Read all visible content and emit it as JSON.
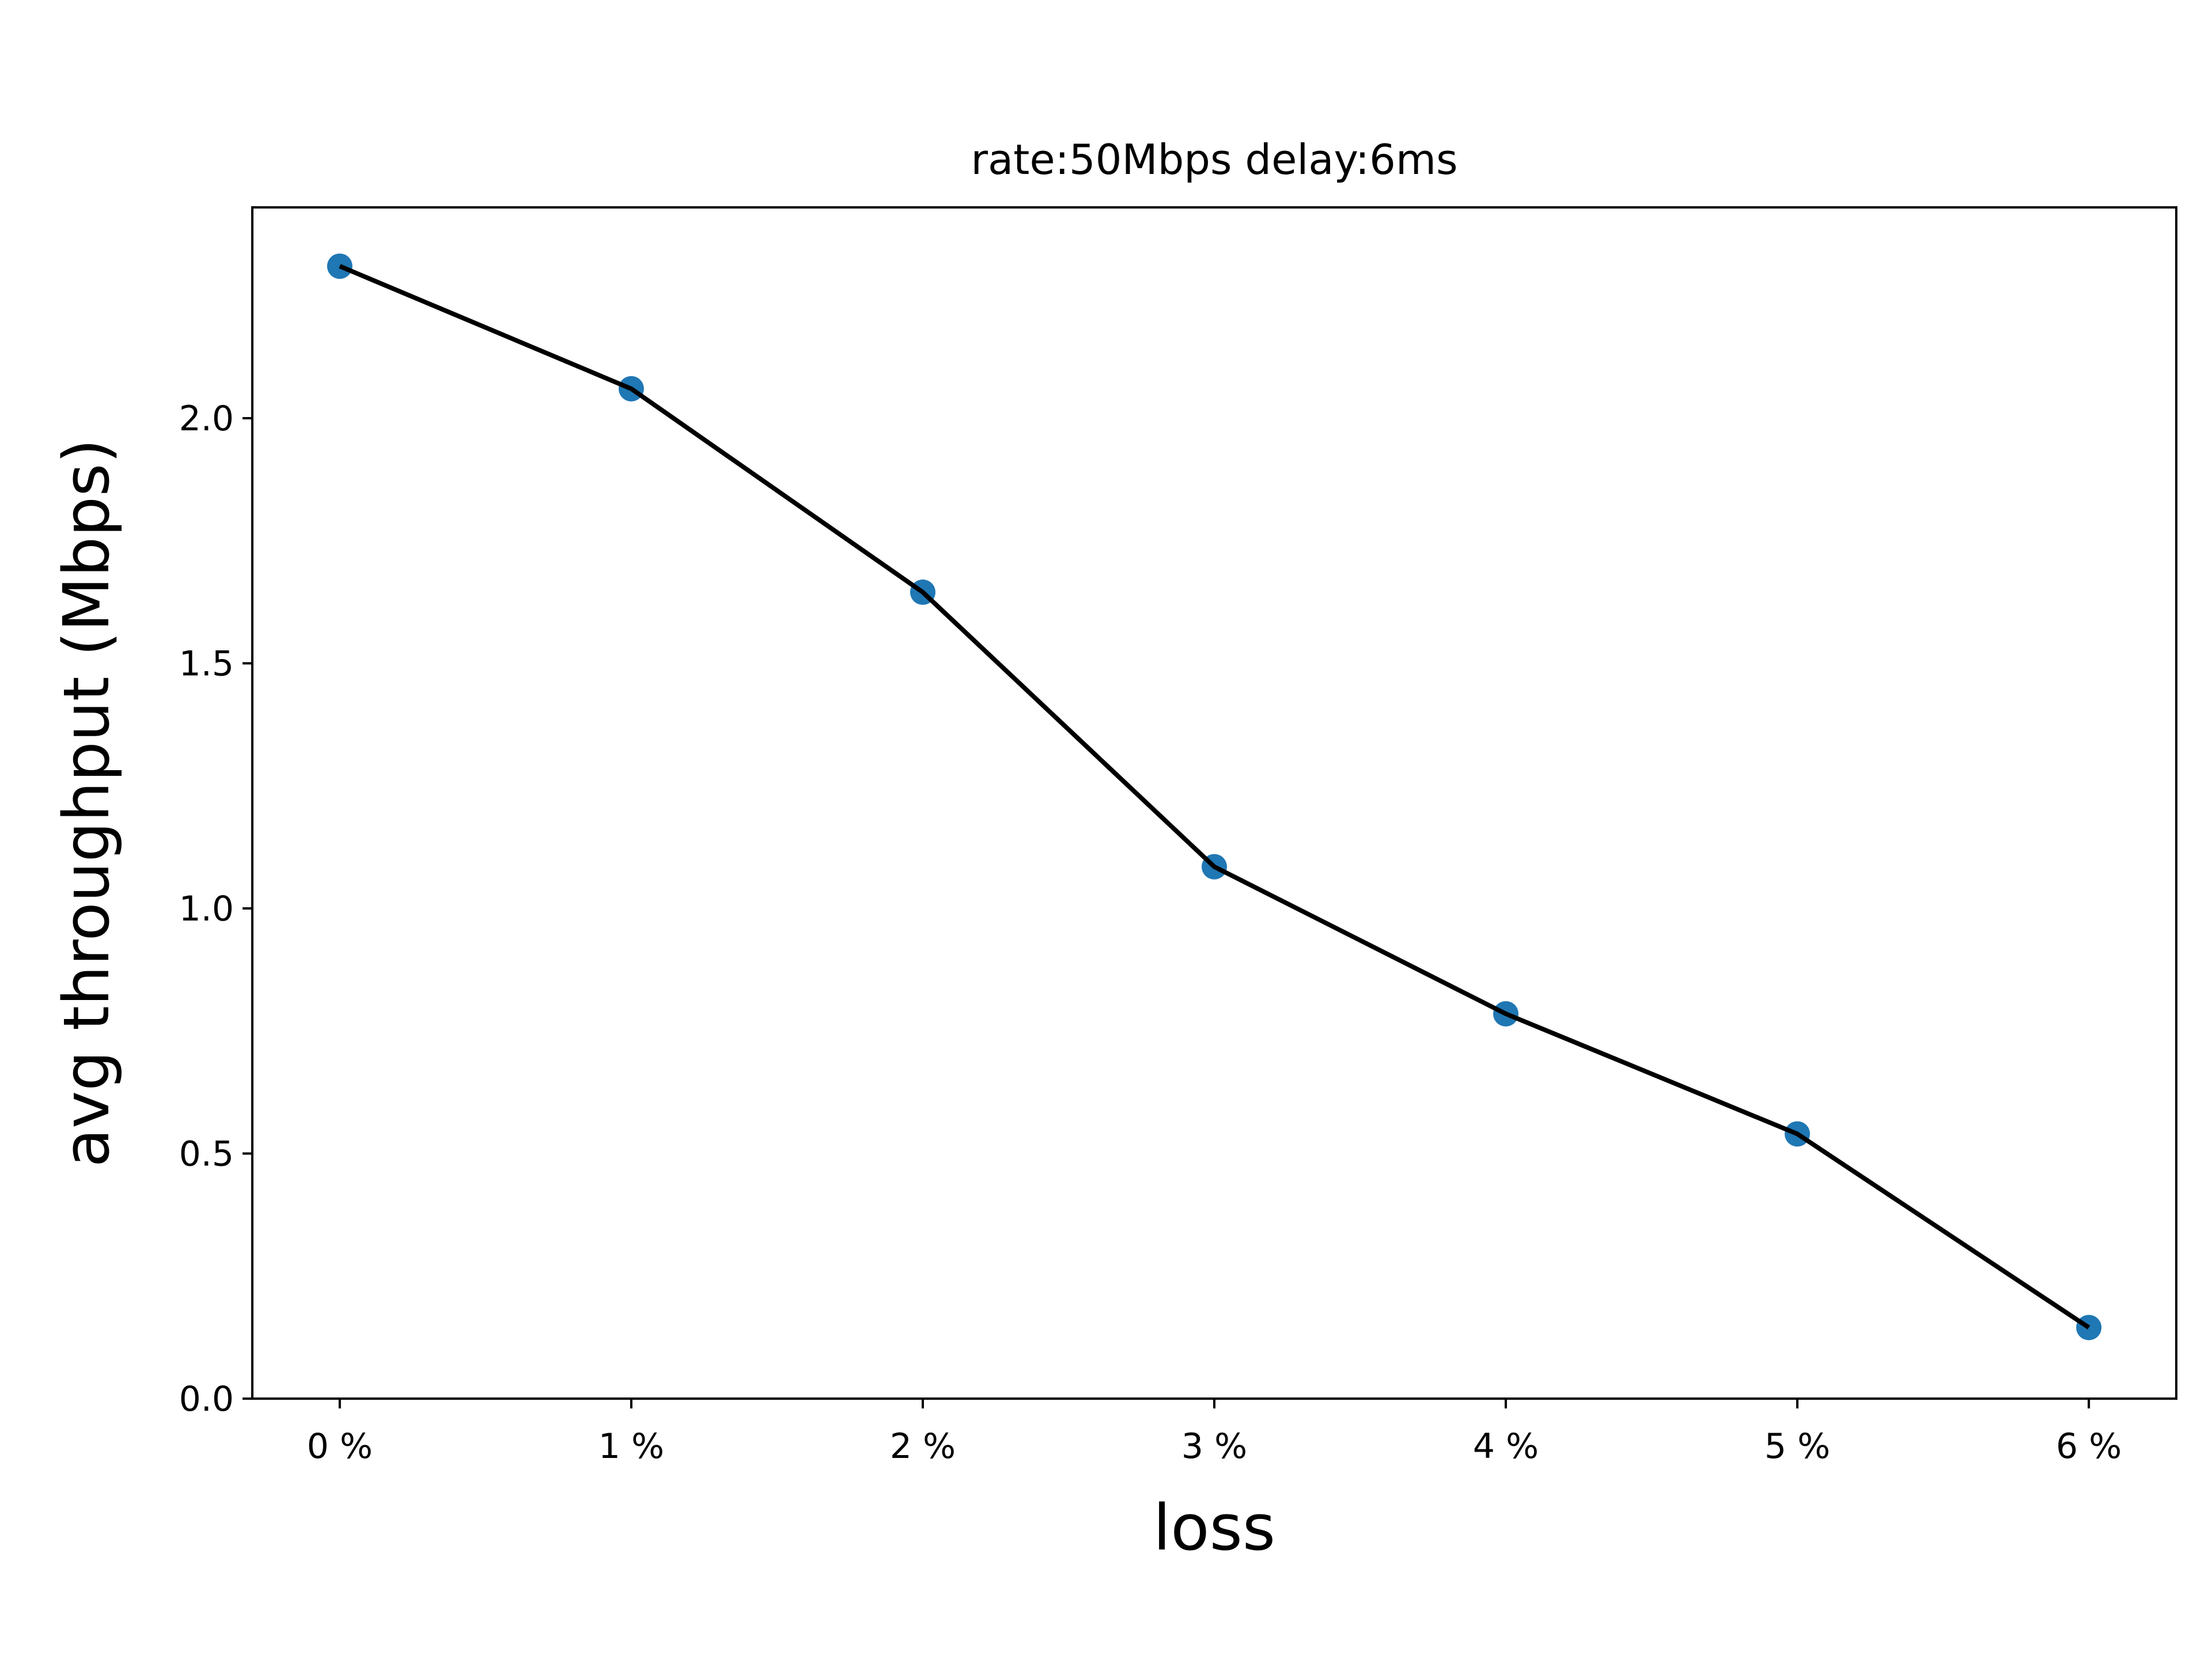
{
  "chart_data": {
    "type": "line",
    "title": "rate:50Mbps delay:6ms",
    "xlabel": "loss",
    "ylabel": "avg throughput (Mbps)",
    "categories": [
      "0 %",
      "1 %",
      "2 %",
      "3 %",
      "4 %",
      "5 %",
      "6 %"
    ],
    "x": [
      0,
      1,
      2,
      3,
      4,
      5,
      6
    ],
    "series": [
      {
        "values": [
          2.31,
          2.06,
          1.645,
          1.085,
          0.785,
          0.54,
          0.145
        ],
        "line_color": "#000000",
        "marker_color": "#1f77b4"
      }
    ],
    "yticks": [
      "0.0",
      "0.5",
      "1.0",
      "1.5",
      "2.0"
    ],
    "ytick_values": [
      0,
      0.5,
      1.0,
      1.5,
      2.0
    ],
    "xlim": [
      -0.3,
      6.3
    ],
    "ylim": [
      0,
      2.43
    ],
    "grid": false,
    "legend": "none"
  }
}
